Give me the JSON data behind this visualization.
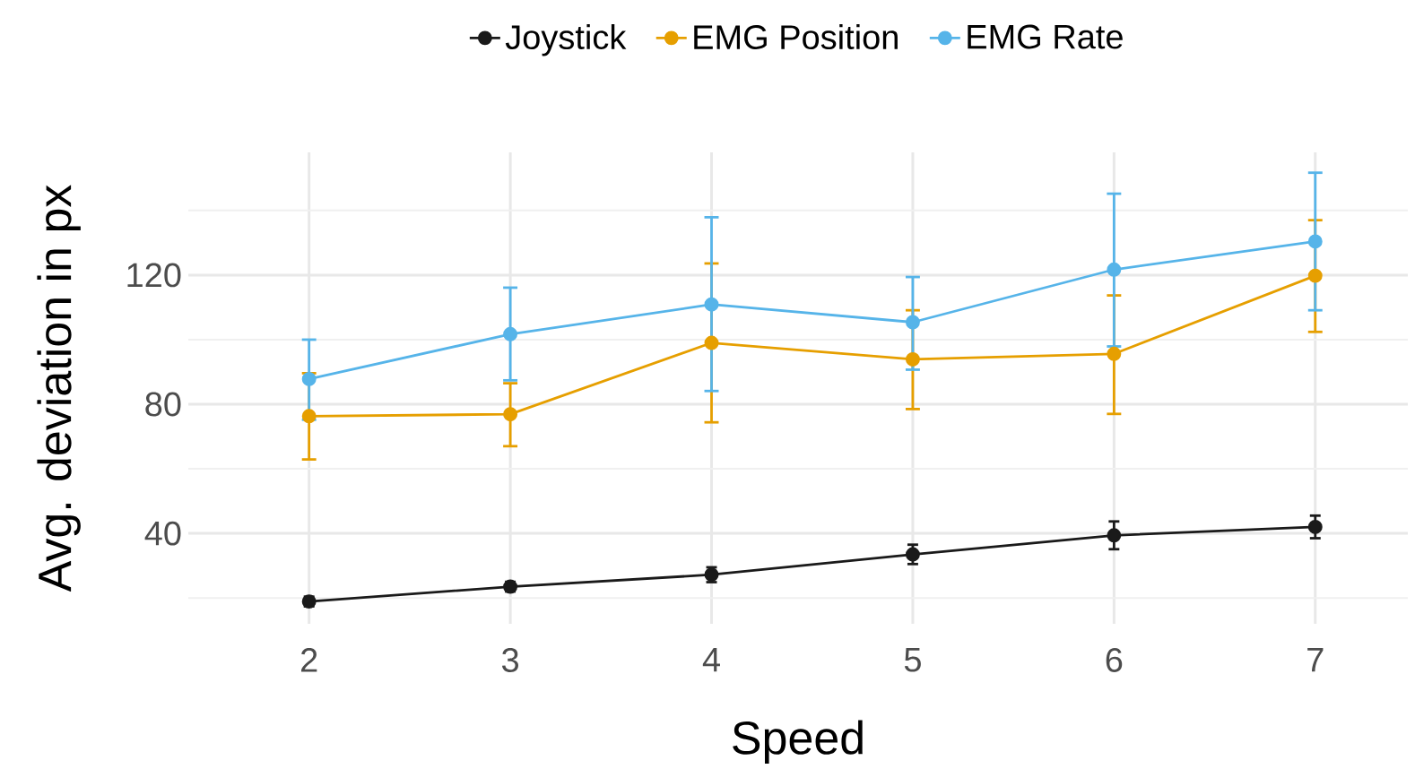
{
  "chart_data": {
    "type": "line",
    "xlabel": "Speed",
    "ylabel": "Avg. deviation in px",
    "x": [
      2,
      3,
      4,
      5,
      6,
      7
    ],
    "series": [
      {
        "name": "Joystick",
        "color": "#1a1a1a",
        "values": [
          18.9,
          23.5,
          27.2,
          33.5,
          39.4,
          42.0
        ],
        "errors": [
          [
            17.4,
            20.4
          ],
          [
            22.0,
            25.0
          ],
          [
            24.9,
            29.5
          ],
          [
            30.5,
            36.5
          ],
          [
            35.1,
            43.7
          ],
          [
            38.5,
            45.5
          ]
        ]
      },
      {
        "name": "EMG Position",
        "color": "#e69f00",
        "values": [
          76.3,
          76.9,
          99.0,
          93.9,
          95.6,
          119.8
        ],
        "errors": [
          [
            62.9,
            89.6
          ],
          [
            67.0,
            86.5
          ],
          [
            74.4,
            123.6
          ],
          [
            78.5,
            109.1
          ],
          [
            77.0,
            113.7
          ],
          [
            102.4,
            137.0
          ]
        ]
      },
      {
        "name": "EMG Rate",
        "color": "#56b4e9",
        "values": [
          87.8,
          101.7,
          110.9,
          105.4,
          121.7,
          130.4
        ],
        "errors": [
          [
            75.2,
            100.0
          ],
          [
            87.4,
            116.1
          ],
          [
            84.1,
            137.9
          ],
          [
            90.7,
            119.4
          ],
          [
            97.9,
            145.2
          ],
          [
            109.1,
            151.7
          ]
        ]
      }
    ],
    "xlim": [
      1.4,
      7.46
    ],
    "ylim": [
      12,
      158
    ],
    "xticks": [
      2,
      3,
      4,
      5,
      6,
      7
    ],
    "yticks": [
      40,
      80,
      120
    ],
    "grid": true,
    "legend": "top",
    "marker": "circle",
    "line_style": "solid"
  }
}
